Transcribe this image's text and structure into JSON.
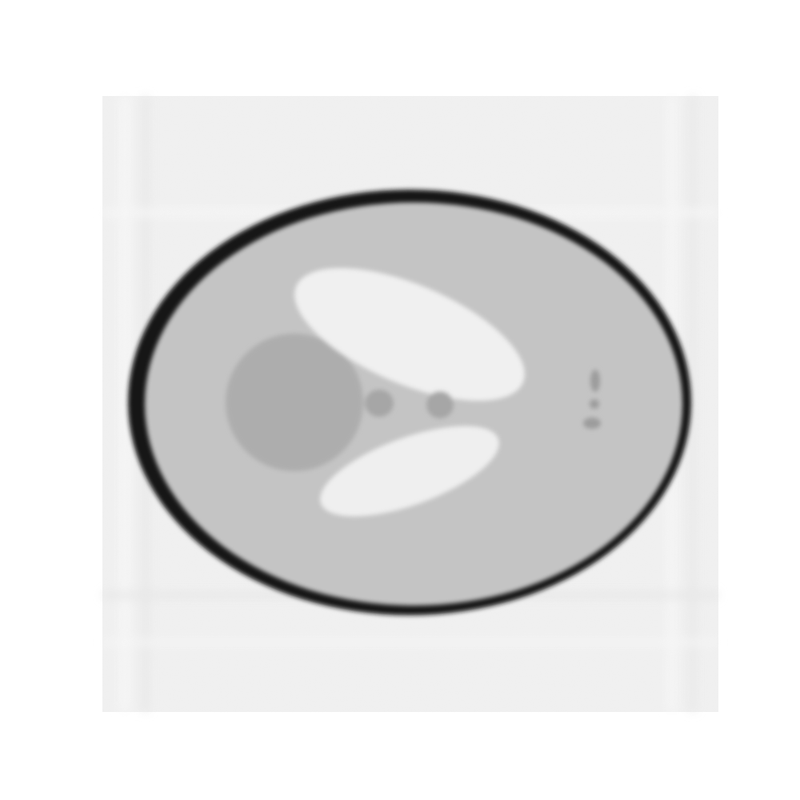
{
  "image": {
    "kind": "phantom-reconstruction",
    "colors": {
      "page_background": "#ffffff",
      "field_background": "#f1f1f1",
      "streak_light": "#fafafa",
      "streak_dark": "#e6e6e6",
      "skull_rim": "#141414",
      "brain_tissue": "#c4c4c4",
      "large_ellipse": "#f0f0f0",
      "lower_ellipse": "#efefef",
      "left_disc": "#adadad",
      "small_spot": "#a6a6a6",
      "tiny_marks": "#9c9c9c"
    }
  }
}
